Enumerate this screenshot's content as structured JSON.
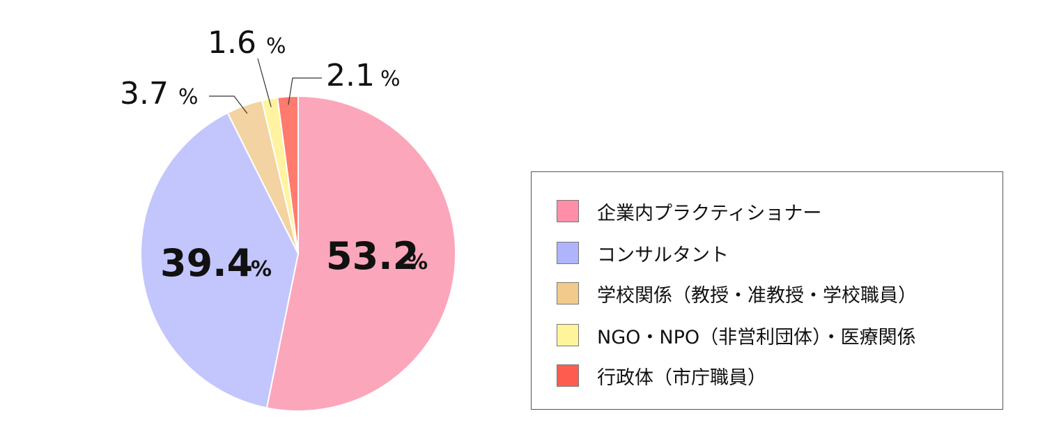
{
  "chart_data": {
    "type": "pie",
    "slices": [
      {
        "name": "企業内プラクティショナー",
        "value": 53.2,
        "label": "53.2",
        "color": "#FBA6BB"
      },
      {
        "name": "コンサルタント",
        "value": 39.4,
        "label": "39.4",
        "color": "#C3C6FC"
      },
      {
        "name": "学校関係（教授・准教授・学校職員）",
        "value": 3.7,
        "label": "3.7",
        "color": "#F3D3A1"
      },
      {
        "name": "NGO・NPO（非営利団体）・医療関係",
        "value": 1.6,
        "label": "1.6",
        "color": "#FFF3A0"
      },
      {
        "name": "行政体（市庁職員）",
        "value": 2.1,
        "label": "2.1",
        "color": "#FF7B6E"
      }
    ],
    "percent_sign": "%",
    "legend": {
      "placement": "right",
      "swatch_colors": [
        "#FF8FA8",
        "#AFB4FC",
        "#F2CB8C",
        "#FFF49A",
        "#FF5C50"
      ]
    }
  }
}
